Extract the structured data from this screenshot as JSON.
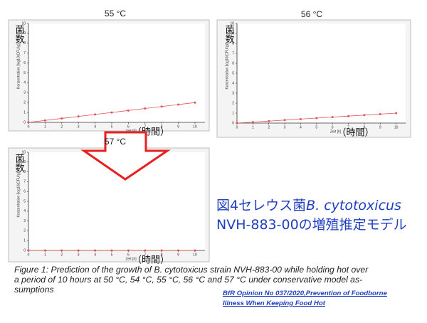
{
  "chart_data": [
    {
      "type": "line",
      "title": "55 °C",
      "xlabel": "Zeit [h]",
      "xlabel_ja": "（時間）",
      "ylabel": "Konzentration [log10(CFU/g)]",
      "ylabel_ja": "菌数",
      "x": [
        0,
        1,
        2,
        3,
        4,
        5,
        6,
        7,
        8,
        9,
        10
      ],
      "values": [
        0,
        0.2,
        0.4,
        0.6,
        0.8,
        1.0,
        1.2,
        1.4,
        1.6,
        1.8,
        2.0
      ],
      "color": "#e05555",
      "xlim": [
        0,
        10.6
      ],
      "ylim": [
        0,
        10
      ],
      "xticks": [
        0,
        1,
        2,
        3,
        4,
        5,
        6,
        7,
        8,
        9,
        10
      ],
      "yticks": [
        0,
        1,
        2,
        3,
        4,
        5,
        6,
        7,
        8,
        9,
        10
      ]
    },
    {
      "type": "line",
      "title": "56 °C",
      "xlabel": "Zeit [h]",
      "xlabel_ja": "（時間）",
      "ylabel": "Konzentration [log10(CFU/g)]",
      "ylabel_ja": "菌数",
      "x": [
        0,
        1,
        2,
        3,
        4,
        5,
        6,
        7,
        8,
        9,
        10
      ],
      "values": [
        0,
        0.1,
        0.2,
        0.3,
        0.4,
        0.5,
        0.6,
        0.7,
        0.8,
        0.9,
        1.0
      ],
      "color": "#e05555",
      "xlim": [
        0,
        10.6
      ],
      "ylim": [
        0,
        10
      ],
      "xticks": [
        0,
        1,
        2,
        3,
        4,
        5,
        6,
        7,
        8,
        9,
        10
      ],
      "yticks": [
        0,
        1,
        2,
        3,
        4,
        5,
        6,
        7,
        8,
        9,
        10
      ]
    },
    {
      "type": "line",
      "title": "57 °C",
      "xlabel": "Zeit [h]",
      "xlabel_ja": "（時間）",
      "ylabel": "Konzentration [log10(CFU/g)]",
      "ylabel_ja": "菌数",
      "x": [
        0,
        1,
        2,
        3,
        4,
        5,
        6,
        7,
        8,
        9,
        10
      ],
      "values": [
        0,
        0,
        0,
        0,
        0,
        0,
        0,
        0,
        0,
        0,
        0
      ],
      "color": "#e05555",
      "xlim": [
        0,
        10.6
      ],
      "ylim": [
        0,
        10
      ],
      "xticks": [
        0,
        1,
        2,
        3,
        4,
        5,
        6,
        7,
        8,
        9,
        10
      ],
      "yticks": [
        0,
        1,
        2,
        3,
        4,
        5,
        6,
        7,
        8,
        9,
        10
      ]
    }
  ],
  "heading": {
    "prefix": "図4セレウス菌",
    "species": "B. cytotoxicus",
    "rest": "NVH-883-00の増殖推定モデル"
  },
  "caption": [
    "Figure 1: Prediction of the growth of B. cytotoxicus strain NVH-883-00 while holding hot over",
    "a period of 10 hours at 50 °C, 54 °C, 55 °C, 56 °C and 57 °C under conservative model as-",
    "sumptions"
  ],
  "source": [
    "BfR Opinion No 037/2020,Prevention of Foodborne",
    "Illness When Keeping Food Hot"
  ]
}
